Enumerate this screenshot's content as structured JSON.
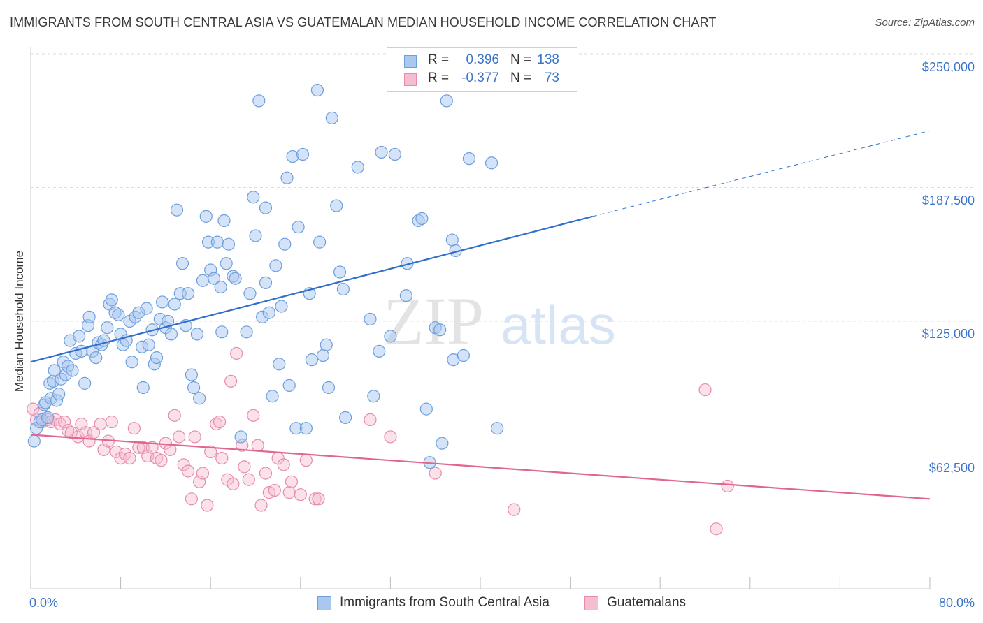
{
  "title": "IMMIGRANTS FROM SOUTH CENTRAL ASIA VS GUATEMALAN MEDIAN HOUSEHOLD INCOME CORRELATION CHART",
  "source": "Source: ZipAtlas.com",
  "watermark": {
    "zip": "ZIP",
    "atlas": "atlas"
  },
  "y_axis_label": "Median Household Income",
  "y_ticks": [
    "$250,000",
    "$187,500",
    "$125,000",
    "$62,500"
  ],
  "x_ticks": {
    "left": "0.0%",
    "right": "80.0%"
  },
  "legend": {
    "series1": {
      "r_label": "R =",
      "r_value": "0.396",
      "n_label": "N =",
      "n_value": "138"
    },
    "series2": {
      "r_label": "R =",
      "r_value": "-0.377",
      "n_label": "N =",
      "n_value": "73"
    }
  },
  "bottom_legend": {
    "series1": "Immigrants from South Central Asia",
    "series2": "Guatemalans"
  },
  "colors": {
    "blue_fill": "#a9c8ef",
    "blue_stroke": "#6d9fdc",
    "blue_line": "#2e6fcc",
    "pink_fill": "#f6bcd1",
    "pink_stroke": "#e68bab",
    "pink_line": "#e0668f",
    "tick_text": "#3b74c8",
    "grid": "#dcdcdc"
  },
  "chart_data": {
    "type": "scatter",
    "xlim": [
      0,
      80
    ],
    "ylim": [
      0,
      262500
    ],
    "y_tick_values": [
      62500,
      125000,
      187500,
      250000
    ],
    "series": [
      {
        "name": "Immigrants from South Central Asia",
        "trend": {
          "x0": 0,
          "y0": 106000,
          "x1": 50,
          "y1": 174000,
          "dashed_to_x": 80,
          "dashed_to_y": 214000
        },
        "points": [
          [
            0.3,
            69000
          ],
          [
            0.5,
            75000
          ],
          [
            0.8,
            78000
          ],
          [
            1.0,
            79000
          ],
          [
            1.2,
            86000
          ],
          [
            1.3,
            87000
          ],
          [
            1.5,
            80000
          ],
          [
            1.7,
            96000
          ],
          [
            1.8,
            89000
          ],
          [
            2.0,
            97000
          ],
          [
            2.1,
            102000
          ],
          [
            2.3,
            88000
          ],
          [
            2.5,
            91000
          ],
          [
            2.7,
            98000
          ],
          [
            2.9,
            106000
          ],
          [
            3.1,
            100000
          ],
          [
            3.3,
            104000
          ],
          [
            3.5,
            116000
          ],
          [
            3.7,
            102000
          ],
          [
            4.0,
            110000
          ],
          [
            4.3,
            118000
          ],
          [
            4.5,
            111000
          ],
          [
            4.8,
            96000
          ],
          [
            5.1,
            123000
          ],
          [
            5.2,
            127000
          ],
          [
            5.5,
            111000
          ],
          [
            5.8,
            108000
          ],
          [
            6.0,
            115000
          ],
          [
            6.3,
            114000
          ],
          [
            6.5,
            116000
          ],
          [
            6.8,
            122000
          ],
          [
            7.0,
            133000
          ],
          [
            7.2,
            135000
          ],
          [
            7.5,
            129000
          ],
          [
            7.8,
            128000
          ],
          [
            8.0,
            119000
          ],
          [
            8.2,
            114000
          ],
          [
            8.5,
            116000
          ],
          [
            8.8,
            125000
          ],
          [
            9.0,
            106000
          ],
          [
            9.3,
            127000
          ],
          [
            9.6,
            129000
          ],
          [
            9.9,
            113000
          ],
          [
            10.0,
            94000
          ],
          [
            10.3,
            131000
          ],
          [
            10.5,
            114000
          ],
          [
            10.8,
            121000
          ],
          [
            11.0,
            105000
          ],
          [
            11.2,
            108000
          ],
          [
            11.5,
            126000
          ],
          [
            11.7,
            134000
          ],
          [
            12.0,
            122000
          ],
          [
            12.2,
            125000
          ],
          [
            12.5,
            119000
          ],
          [
            12.8,
            133000
          ],
          [
            13.0,
            177000
          ],
          [
            13.3,
            138000
          ],
          [
            13.5,
            152000
          ],
          [
            13.8,
            123000
          ],
          [
            14.0,
            138000
          ],
          [
            14.3,
            100000
          ],
          [
            14.5,
            94000
          ],
          [
            14.8,
            119000
          ],
          [
            15.0,
            89000
          ],
          [
            15.3,
            144000
          ],
          [
            15.6,
            174000
          ],
          [
            15.8,
            162000
          ],
          [
            16.0,
            149000
          ],
          [
            16.3,
            145000
          ],
          [
            16.6,
            162000
          ],
          [
            16.9,
            141000
          ],
          [
            17.0,
            120000
          ],
          [
            17.2,
            172000
          ],
          [
            17.4,
            152000
          ],
          [
            17.6,
            161000
          ],
          [
            18.0,
            146000
          ],
          [
            18.2,
            145000
          ],
          [
            18.7,
            71000
          ],
          [
            19.2,
            120000
          ],
          [
            19.5,
            138000
          ],
          [
            19.8,
            183000
          ],
          [
            20.0,
            165000
          ],
          [
            20.3,
            228000
          ],
          [
            20.6,
            127000
          ],
          [
            20.9,
            143000
          ],
          [
            20.9,
            178000
          ],
          [
            21.2,
            129000
          ],
          [
            21.5,
            90000
          ],
          [
            21.8,
            151000
          ],
          [
            22.1,
            105000
          ],
          [
            22.3,
            132000
          ],
          [
            22.6,
            161000
          ],
          [
            22.8,
            192000
          ],
          [
            23.0,
            95000
          ],
          [
            23.3,
            202000
          ],
          [
            23.6,
            75000
          ],
          [
            23.8,
            169000
          ],
          [
            24.2,
            203000
          ],
          [
            24.5,
            75000
          ],
          [
            24.8,
            138000
          ],
          [
            25.0,
            107000
          ],
          [
            25.5,
            233000
          ],
          [
            25.7,
            162000
          ],
          [
            26.0,
            109000
          ],
          [
            26.3,
            114000
          ],
          [
            26.5,
            94000
          ],
          [
            26.8,
            220000
          ],
          [
            27.2,
            179000
          ],
          [
            27.5,
            148000
          ],
          [
            27.8,
            140000
          ],
          [
            28.0,
            80000
          ],
          [
            29.1,
            197000
          ],
          [
            30.5,
            90000
          ],
          [
            30.2,
            126000
          ],
          [
            31.0,
            111000
          ],
          [
            31.2,
            204000
          ],
          [
            32.0,
            118000
          ],
          [
            32.4,
            203000
          ],
          [
            33.4,
            137000
          ],
          [
            33.5,
            152000
          ],
          [
            34.5,
            172000
          ],
          [
            34.8,
            173000
          ],
          [
            35.2,
            84000
          ],
          [
            35.5,
            59000
          ],
          [
            36.0,
            122000
          ],
          [
            36.4,
            121000
          ],
          [
            36.6,
            68000
          ],
          [
            37.0,
            228000
          ],
          [
            37.5,
            163000
          ],
          [
            37.8,
            158000
          ],
          [
            37.6,
            107000
          ],
          [
            38.5,
            109000
          ],
          [
            39.0,
            201000
          ],
          [
            41.0,
            199000
          ],
          [
            41.5,
            75000
          ]
        ]
      },
      {
        "name": "Guatemalans",
        "trend": {
          "x0": 0,
          "y0": 72000,
          "x1": 80,
          "y1": 42000
        },
        "points": [
          [
            0.2,
            84000
          ],
          [
            0.5,
            79000
          ],
          [
            0.8,
            82000
          ],
          [
            1.0,
            78000
          ],
          [
            1.5,
            79000
          ],
          [
            1.8,
            78000
          ],
          [
            2.2,
            79000
          ],
          [
            2.6,
            77000
          ],
          [
            3.0,
            78000
          ],
          [
            3.3,
            74000
          ],
          [
            3.6,
            73000
          ],
          [
            4.2,
            71000
          ],
          [
            4.5,
            77000
          ],
          [
            4.9,
            73000
          ],
          [
            5.2,
            69000
          ],
          [
            5.6,
            73000
          ],
          [
            6.2,
            77000
          ],
          [
            6.5,
            65000
          ],
          [
            6.9,
            69000
          ],
          [
            7.2,
            78000
          ],
          [
            7.6,
            64000
          ],
          [
            8.0,
            61000
          ],
          [
            8.4,
            63000
          ],
          [
            8.8,
            61000
          ],
          [
            9.2,
            75000
          ],
          [
            9.6,
            66000
          ],
          [
            10.0,
            66000
          ],
          [
            10.4,
            62000
          ],
          [
            10.8,
            66000
          ],
          [
            11.2,
            61000
          ],
          [
            11.6,
            60000
          ],
          [
            12.0,
            68000
          ],
          [
            12.4,
            65000
          ],
          [
            12.8,
            81000
          ],
          [
            13.2,
            71000
          ],
          [
            13.6,
            58000
          ],
          [
            14.0,
            55000
          ],
          [
            14.3,
            42000
          ],
          [
            14.6,
            71000
          ],
          [
            15.0,
            50000
          ],
          [
            15.3,
            54000
          ],
          [
            15.7,
            39000
          ],
          [
            16.0,
            64000
          ],
          [
            16.5,
            77000
          ],
          [
            16.8,
            78000
          ],
          [
            17.0,
            61000
          ],
          [
            17.5,
            51000
          ],
          [
            17.8,
            97000
          ],
          [
            18.0,
            49000
          ],
          [
            18.3,
            110000
          ],
          [
            18.8,
            67000
          ],
          [
            19.0,
            57000
          ],
          [
            19.4,
            51000
          ],
          [
            19.8,
            81000
          ],
          [
            20.2,
            67000
          ],
          [
            20.5,
            39000
          ],
          [
            20.9,
            54000
          ],
          [
            21.2,
            45000
          ],
          [
            21.7,
            46000
          ],
          [
            22.0,
            61000
          ],
          [
            22.5,
            58000
          ],
          [
            23.0,
            45000
          ],
          [
            23.2,
            50000
          ],
          [
            24.0,
            44000
          ],
          [
            24.5,
            60000
          ],
          [
            25.3,
            42000
          ],
          [
            25.6,
            42000
          ],
          [
            30.2,
            79000
          ],
          [
            32.0,
            71000
          ],
          [
            36.0,
            54000
          ],
          [
            43.0,
            37000
          ],
          [
            60.0,
            93000
          ],
          [
            61.0,
            28000
          ],
          [
            62.0,
            48000
          ]
        ]
      }
    ]
  }
}
